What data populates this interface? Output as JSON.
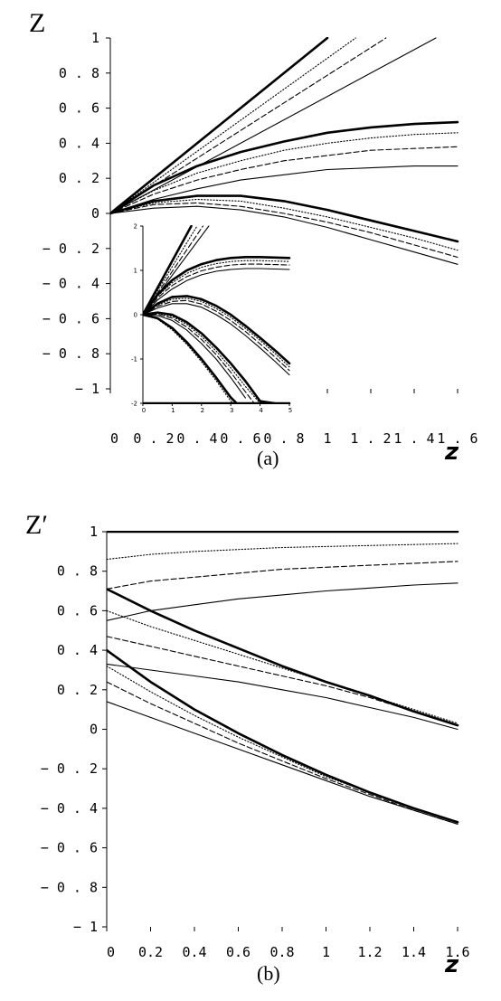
{
  "chart_data": [
    {
      "id": "a",
      "type": "line",
      "ylabel": "Z",
      "xlabel": "z",
      "caption": "(a)",
      "xlim": [
        0,
        1.6
      ],
      "ylim": [
        -1,
        1
      ],
      "x_ticks": [
        "0",
        "0.2",
        "0.4",
        "0.6",
        "0.8",
        "1",
        "1.2",
        "1.4",
        "1.6"
      ],
      "y_ticks": [
        "1",
        "0.8",
        "0.6",
        "0.4",
        "0.2",
        "0",
        "-0.2",
        "-0.4",
        "-0.6",
        "-0.8",
        "-1"
      ],
      "x_tick_text": [
        "0",
        "0 . 2",
        "0 . 4",
        "0 . 6",
        "0 . 8",
        "1",
        "1 . 2",
        "1 . 4",
        "1 . 6"
      ],
      "y_tick_text": [
        "1",
        "0 . 8",
        "0 . 6",
        "0 . 4",
        "0 . 2",
        "0",
        "− 0 . 2",
        "− 0 . 4",
        "− 0 . 6",
        "− 0 . 8",
        "− 1"
      ],
      "series": [
        {
          "style": "solid-thick",
          "x": [
            0,
            1.0
          ],
          "y": [
            0,
            1.0
          ]
        },
        {
          "style": "dotted",
          "x": [
            0,
            1.13
          ],
          "y": [
            0,
            1.0
          ]
        },
        {
          "style": "dashed",
          "x": [
            0,
            1.27
          ],
          "y": [
            0,
            1.0
          ]
        },
        {
          "style": "solid",
          "x": [
            0,
            1.5
          ],
          "y": [
            0,
            1.0
          ]
        },
        {
          "style": "solid-thick",
          "x": [
            0,
            0.2,
            0.4,
            0.6,
            0.8,
            1.0,
            1.2,
            1.4,
            1.6
          ],
          "y": [
            0,
            0.16,
            0.27,
            0.35,
            0.41,
            0.46,
            0.49,
            0.51,
            0.52
          ]
        },
        {
          "style": "dotted",
          "x": [
            0,
            0.2,
            0.4,
            0.6,
            0.8,
            1.0,
            1.2,
            1.4,
            1.6
          ],
          "y": [
            0,
            0.13,
            0.23,
            0.3,
            0.36,
            0.4,
            0.43,
            0.45,
            0.46
          ]
        },
        {
          "style": "dashed",
          "x": [
            0,
            0.2,
            0.4,
            0.6,
            0.8,
            1.0,
            1.2,
            1.4,
            1.6
          ],
          "y": [
            0,
            0.11,
            0.19,
            0.25,
            0.3,
            0.33,
            0.36,
            0.37,
            0.38
          ]
        },
        {
          "style": "solid",
          "x": [
            0,
            0.2,
            0.4,
            0.6,
            0.8,
            1.0,
            1.2,
            1.4,
            1.6
          ],
          "y": [
            0,
            0.08,
            0.14,
            0.19,
            0.22,
            0.25,
            0.26,
            0.27,
            0.27
          ]
        },
        {
          "style": "solid-thick",
          "x": [
            0,
            0.2,
            0.4,
            0.6,
            0.8,
            1.0,
            1.2,
            1.4,
            1.6
          ],
          "y": [
            0,
            0.07,
            0.1,
            0.1,
            0.07,
            0.02,
            -0.04,
            -0.1,
            -0.16
          ]
        },
        {
          "style": "dotted",
          "x": [
            0,
            0.2,
            0.4,
            0.6,
            0.8,
            1.0,
            1.2,
            1.4,
            1.6
          ],
          "y": [
            0,
            0.06,
            0.08,
            0.07,
            0.03,
            -0.02,
            -0.08,
            -0.14,
            -0.21
          ]
        },
        {
          "style": "dashed",
          "x": [
            0,
            0.2,
            0.4,
            0.6,
            0.8,
            1.0,
            1.2,
            1.4,
            1.6
          ],
          "y": [
            0,
            0.05,
            0.06,
            0.04,
            0.0,
            -0.05,
            -0.11,
            -0.18,
            -0.25
          ]
        },
        {
          "style": "solid",
          "x": [
            0,
            0.2,
            0.4,
            0.6,
            0.8,
            1.0,
            1.2,
            1.4,
            1.6
          ],
          "y": [
            0,
            0.03,
            0.04,
            0.02,
            -0.02,
            -0.08,
            -0.15,
            -0.22,
            -0.29
          ]
        }
      ]
    },
    {
      "id": "a-inset",
      "type": "line",
      "xlim": [
        0,
        5
      ],
      "ylim": [
        -2,
        2
      ],
      "x_ticks": [
        "0",
        "1",
        "2",
        "3",
        "4",
        "5"
      ],
      "y_ticks": [
        "2",
        "1",
        "0",
        "-1",
        "-2"
      ],
      "x_tick_text": [
        "0",
        "1",
        "2",
        "3",
        "4",
        "5"
      ],
      "y_tick_text": [
        "2",
        "1",
        "0",
        "-1",
        "-2"
      ],
      "series": [
        {
          "style": "solid-thick",
          "x": [
            0,
            1.65
          ],
          "y": [
            0,
            2.0
          ]
        },
        {
          "style": "dotted",
          "x": [
            0,
            1.85
          ],
          "y": [
            0,
            2.0
          ]
        },
        {
          "style": "dashed",
          "x": [
            0,
            2.05
          ],
          "y": [
            0,
            2.0
          ]
        },
        {
          "style": "solid",
          "x": [
            0,
            2.25
          ],
          "y": [
            0,
            2.0
          ]
        },
        {
          "style": "solid-thick",
          "x": [
            0,
            0.5,
            1,
            1.5,
            2,
            2.5,
            3,
            3.5,
            4,
            4.5,
            5
          ],
          "y": [
            0,
            0.45,
            0.78,
            1.0,
            1.14,
            1.23,
            1.28,
            1.3,
            1.3,
            1.29,
            1.28
          ]
        },
        {
          "style": "dotted",
          "x": [
            0,
            0.5,
            1,
            1.5,
            2,
            2.5,
            3,
            3.5,
            4,
            4.5,
            5
          ],
          "y": [
            0,
            0.42,
            0.72,
            0.93,
            1.07,
            1.15,
            1.2,
            1.22,
            1.22,
            1.21,
            1.2
          ]
        },
        {
          "style": "dashed",
          "x": [
            0,
            0.5,
            1,
            1.5,
            2,
            2.5,
            3,
            3.5,
            4,
            4.5,
            5
          ],
          "y": [
            0,
            0.38,
            0.66,
            0.86,
            0.99,
            1.07,
            1.12,
            1.14,
            1.14,
            1.13,
            1.12
          ]
        },
        {
          "style": "solid",
          "x": [
            0,
            0.5,
            1,
            1.5,
            2,
            2.5,
            3,
            3.5,
            4,
            4.5,
            5
          ],
          "y": [
            0,
            0.33,
            0.58,
            0.77,
            0.9,
            0.98,
            1.02,
            1.04,
            1.04,
            1.03,
            1.02
          ]
        },
        {
          "style": "solid-thick",
          "x": [
            0,
            0.5,
            1,
            1.5,
            2,
            2.5,
            3,
            3.5,
            4,
            4.5,
            5
          ],
          "y": [
            0,
            0.25,
            0.4,
            0.42,
            0.35,
            0.2,
            0.0,
            -0.25,
            -0.52,
            -0.8,
            -1.1
          ]
        },
        {
          "style": "dotted",
          "x": [
            0,
            0.5,
            1,
            1.5,
            2,
            2.5,
            3,
            3.5,
            4,
            4.5,
            5
          ],
          "y": [
            0,
            0.22,
            0.35,
            0.37,
            0.3,
            0.14,
            -0.06,
            -0.31,
            -0.58,
            -0.87,
            -1.18
          ]
        },
        {
          "style": "dashed",
          "x": [
            0,
            0.5,
            1,
            1.5,
            2,
            2.5,
            3,
            3.5,
            4,
            4.5,
            5
          ],
          "y": [
            0,
            0.19,
            0.3,
            0.32,
            0.24,
            0.08,
            -0.13,
            -0.38,
            -0.66,
            -0.95,
            -1.26
          ]
        },
        {
          "style": "solid",
          "x": [
            0,
            0.5,
            1,
            1.5,
            2,
            2.5,
            3,
            3.5,
            4,
            4.5,
            5
          ],
          "y": [
            0,
            0.15,
            0.25,
            0.25,
            0.17,
            0.0,
            -0.21,
            -0.47,
            -0.75,
            -1.05,
            -1.36
          ]
        },
        {
          "style": "solid-thick",
          "x": [
            0,
            0.5,
            1,
            1.5,
            2,
            2.5,
            3,
            3.5,
            4,
            4.5
          ],
          "y": [
            0,
            0.05,
            0.0,
            -0.17,
            -0.42,
            -0.74,
            -1.1,
            -1.5,
            -1.95,
            -2.0
          ]
        },
        {
          "style": "dotted",
          "x": [
            0,
            0.5,
            1,
            1.5,
            2,
            2.5,
            3,
            3.5,
            4
          ],
          "y": [
            0,
            0.03,
            -0.04,
            -0.22,
            -0.49,
            -0.82,
            -1.2,
            -1.62,
            -2.0
          ]
        },
        {
          "style": "dashed",
          "x": [
            0,
            0.5,
            1,
            1.5,
            2,
            2.5,
            3,
            3.5,
            3.8
          ],
          "y": [
            0,
            0.01,
            -0.08,
            -0.28,
            -0.56,
            -0.9,
            -1.3,
            -1.74,
            -2.0
          ]
        },
        {
          "style": "solid",
          "x": [
            0,
            0.5,
            1,
            1.5,
            2,
            2.5,
            3,
            3.5
          ],
          "y": [
            0,
            -0.02,
            -0.13,
            -0.35,
            -0.65,
            -1.0,
            -1.42,
            -1.88
          ]
        },
        {
          "style": "solid-thick",
          "x": [
            0,
            0.5,
            1,
            1.5,
            2,
            2.5,
            3,
            3.2
          ],
          "y": [
            0,
            -0.08,
            -0.3,
            -0.62,
            -1.0,
            -1.42,
            -1.87,
            -2.0
          ]
        },
        {
          "style": "dotted",
          "x": [
            0,
            0.5,
            1,
            1.5,
            2,
            2.5,
            3,
            3.1
          ],
          "y": [
            0,
            -0.1,
            -0.34,
            -0.67,
            -1.06,
            -1.49,
            -1.95,
            -2.0
          ]
        },
        {
          "style": "solid-thick",
          "x": [
            0,
            5
          ],
          "y": [
            -2.0,
            -2.0
          ]
        }
      ]
    },
    {
      "id": "b",
      "type": "line",
      "ylabel": "Z′",
      "xlabel": "z",
      "caption": "(b)",
      "xlim": [
        0,
        1.6
      ],
      "ylim": [
        -1,
        1
      ],
      "x_ticks": [
        "0",
        "0.2",
        "0.4",
        "0.6",
        "0.8",
        "1",
        "1.2",
        "1.4",
        "1.6"
      ],
      "y_ticks": [
        "1",
        "0.8",
        "0.6",
        "0.4",
        "0.2",
        "0",
        "-0.2",
        "-0.4",
        "-0.6",
        "-0.8",
        "-1"
      ],
      "x_tick_text": [
        "0",
        "0.2",
        "0.4",
        "0.6",
        "0.8",
        "1",
        "1.2",
        "1.4",
        "1.6"
      ],
      "y_tick_text": [
        "1",
        "0 . 8",
        "0 . 6",
        "0 . 4",
        "0 . 2",
        "0",
        "− 0 . 2",
        "− 0 . 4",
        "− 0 . 6",
        "− 0 . 8",
        "− 1"
      ],
      "series": [
        {
          "style": "solid-thick",
          "x": [
            0,
            1.6
          ],
          "y": [
            1.0,
            1.0
          ]
        },
        {
          "style": "dotted",
          "x": [
            0,
            0.2,
            0.4,
            0.6,
            0.8,
            1.0,
            1.2,
            1.4,
            1.6
          ],
          "y": [
            0.86,
            0.885,
            0.9,
            0.91,
            0.92,
            0.925,
            0.93,
            0.935,
            0.94
          ]
        },
        {
          "style": "dashed",
          "x": [
            0,
            0.2,
            0.4,
            0.6,
            0.8,
            1.0,
            1.2,
            1.4,
            1.6
          ],
          "y": [
            0.71,
            0.75,
            0.77,
            0.79,
            0.81,
            0.82,
            0.83,
            0.84,
            0.85
          ]
        },
        {
          "style": "solid",
          "x": [
            0,
            0.2,
            0.4,
            0.6,
            0.8,
            1.0,
            1.2,
            1.4,
            1.6
          ],
          "y": [
            0.55,
            0.6,
            0.63,
            0.66,
            0.68,
            0.7,
            0.715,
            0.73,
            0.74
          ]
        },
        {
          "style": "solid-thick",
          "x": [
            0,
            0.2,
            0.4,
            0.6,
            0.8,
            1.0,
            1.2,
            1.4,
            1.6
          ],
          "y": [
            0.71,
            0.6,
            0.5,
            0.41,
            0.32,
            0.24,
            0.17,
            0.09,
            0.02
          ]
        },
        {
          "style": "dotted",
          "x": [
            0,
            0.2,
            0.4,
            0.6,
            0.8,
            1.0,
            1.2,
            1.4,
            1.6
          ],
          "y": [
            0.6,
            0.52,
            0.45,
            0.38,
            0.31,
            0.24,
            0.17,
            0.1,
            0.03
          ]
        },
        {
          "style": "dashed",
          "x": [
            0,
            0.2,
            0.4,
            0.6,
            0.8,
            1.0,
            1.2,
            1.4,
            1.6
          ],
          "y": [
            0.47,
            0.42,
            0.37,
            0.32,
            0.27,
            0.22,
            0.16,
            0.09,
            0.02
          ]
        },
        {
          "style": "solid",
          "x": [
            0,
            0.2,
            0.4,
            0.6,
            0.8,
            1.0,
            1.2,
            1.4,
            1.6
          ],
          "y": [
            0.33,
            0.3,
            0.27,
            0.24,
            0.2,
            0.16,
            0.11,
            0.06,
            0.0
          ]
        },
        {
          "style": "solid-thick",
          "x": [
            0,
            0.2,
            0.4,
            0.6,
            0.8,
            1.0,
            1.2,
            1.4,
            1.6
          ],
          "y": [
            0.4,
            0.24,
            0.1,
            -0.02,
            -0.13,
            -0.23,
            -0.32,
            -0.4,
            -0.47
          ]
        },
        {
          "style": "dotted",
          "x": [
            0,
            0.2,
            0.4,
            0.6,
            0.8,
            1.0,
            1.2,
            1.4,
            1.6
          ],
          "y": [
            0.32,
            0.19,
            0.07,
            -0.04,
            -0.14,
            -0.24,
            -0.32,
            -0.4,
            -0.47
          ]
        },
        {
          "style": "dashed",
          "x": [
            0,
            0.2,
            0.4,
            0.6,
            0.8,
            1.0,
            1.2,
            1.4,
            1.6
          ],
          "y": [
            0.24,
            0.13,
            0.03,
            -0.07,
            -0.16,
            -0.25,
            -0.33,
            -0.41,
            -0.48
          ]
        },
        {
          "style": "solid",
          "x": [
            0,
            0.2,
            0.4,
            0.6,
            0.8,
            1.0,
            1.2,
            1.4,
            1.6
          ],
          "y": [
            0.14,
            0.06,
            -0.02,
            -0.1,
            -0.18,
            -0.26,
            -0.34,
            -0.41,
            -0.48
          ]
        }
      ]
    }
  ]
}
